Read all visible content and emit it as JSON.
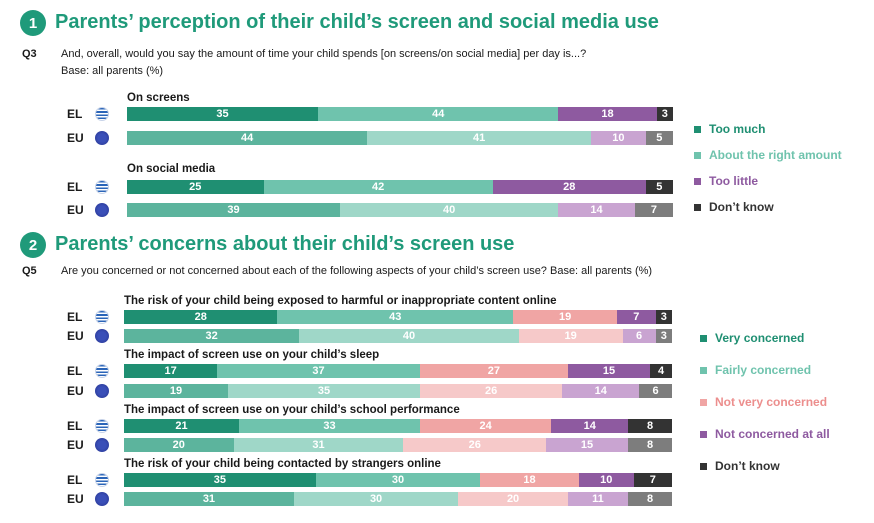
{
  "section1": {
    "number": "1",
    "title": "Parents’ perception of their child’s screen and social media use",
    "qid": "Q3",
    "question": "And, overall, would you say the amount of time your child spends [on screens/on social media] per day is...?",
    "base": "Base: all parents (%)"
  },
  "section2": {
    "number": "2",
    "title": "Parents’ concerns about their child’s screen use",
    "qid": "Q5",
    "question": "Are you concerned or not concerned about each of the following aspects of your child’s screen use?  Base: all parents (%)"
  },
  "colors": {
    "green_dark": "#1f8f72",
    "green_light": "#6fc3ad",
    "purple": "#8e5aa0",
    "black": "#333333",
    "pink": "#f0a5a4",
    "green_light_eu": "#9fd7c8",
    "green_dark_eu": "#5cb49d",
    "purple_light": "#c9a4d1",
    "pink_light": "#f6c9c9",
    "gray": "#7d7d7d"
  },
  "chart_data": [
    {
      "type": "bar",
      "orientation": "horizontal-stacked-100",
      "legend": [
        "Too much",
        "About the right amount",
        "Too little",
        "Don’t know"
      ],
      "groups": [
        {
          "title": "On screens",
          "rows": [
            {
              "label": "EL",
              "values": [
                35,
                44,
                18,
                3
              ]
            },
            {
              "label": "EU",
              "values": [
                44,
                41,
                10,
                5
              ]
            }
          ]
        },
        {
          "title": "On social media",
          "rows": [
            {
              "label": "EL",
              "values": [
                25,
                42,
                28,
                5
              ]
            },
            {
              "label": "EU",
              "values": [
                39,
                40,
                14,
                7
              ]
            }
          ]
        }
      ]
    },
    {
      "type": "bar",
      "orientation": "horizontal-stacked-100",
      "legend": [
        "Very concerned",
        "Fairly concerned",
        "Not very concerned",
        "Not concerned at all",
        "Don’t know"
      ],
      "groups": [
        {
          "title": "The risk of your child being exposed to harmful or inappropriate content online",
          "rows": [
            {
              "label": "EL",
              "values": [
                28,
                43,
                19,
                7,
                3
              ]
            },
            {
              "label": "EU",
              "values": [
                32,
                40,
                19,
                6,
                3
              ]
            }
          ]
        },
        {
          "title": "The impact of screen use on your child’s sleep",
          "rows": [
            {
              "label": "EL",
              "values": [
                17,
                37,
                27,
                15,
                4
              ]
            },
            {
              "label": "EU",
              "values": [
                19,
                35,
                26,
                14,
                6
              ]
            }
          ]
        },
        {
          "title": "The impact of screen use on your child’s school performance",
          "rows": [
            {
              "label": "EL",
              "values": [
                21,
                33,
                24,
                14,
                8
              ]
            },
            {
              "label": "EU",
              "values": [
                20,
                31,
                26,
                15,
                8
              ]
            }
          ]
        },
        {
          "title": "The risk of your child being contacted by strangers online",
          "rows": [
            {
              "label": "EL",
              "values": [
                35,
                30,
                18,
                10,
                7
              ]
            },
            {
              "label": "EU",
              "values": [
                31,
                30,
                20,
                11,
                8
              ]
            }
          ]
        }
      ]
    }
  ]
}
